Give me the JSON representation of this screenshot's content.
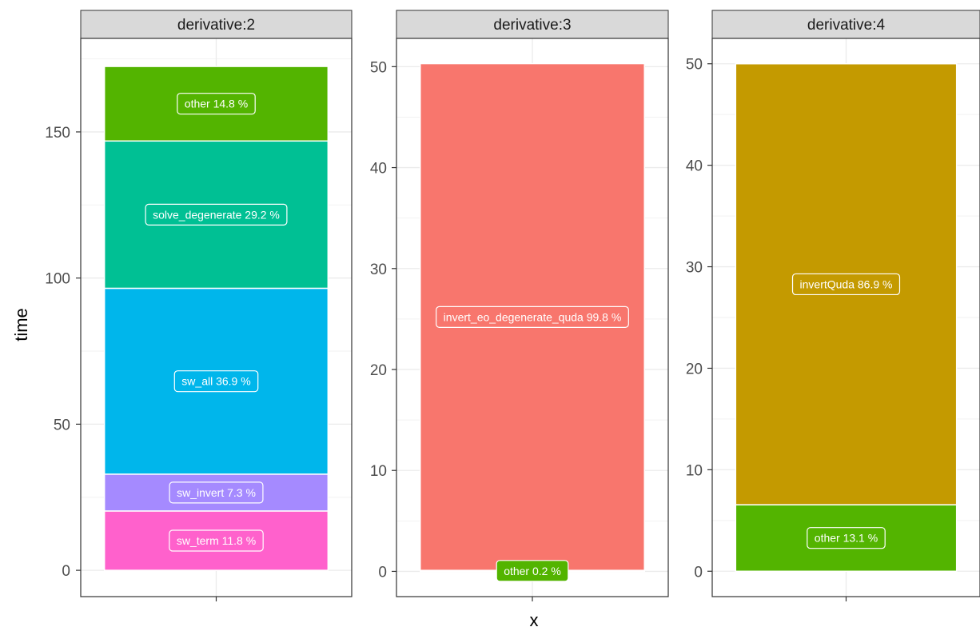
{
  "chart_data": {
    "type": "bar",
    "xlabel": "x",
    "ylabel": "time",
    "facets": [
      {
        "strip": "derivative:2",
        "ylim": [
          -9,
          182
        ],
        "yticks": [
          0,
          50,
          100,
          150
        ],
        "segments": [
          {
            "name": "sw_term",
            "value": 20.3,
            "label": "sw_term 11.8 %",
            "color": "#FF61CC"
          },
          {
            "name": "sw_invert",
            "value": 12.6,
            "label": "sw_invert 7.3 %",
            "color": "#A58AFF"
          },
          {
            "name": "sw_all",
            "value": 63.6,
            "label": "sw_all 36.9 %",
            "color": "#00B6EB"
          },
          {
            "name": "solve_degenerate",
            "value": 50.4,
            "label": "solve_degenerate 29.2 %",
            "color": "#00C094"
          },
          {
            "name": "other",
            "value": 25.5,
            "label": "other 14.8 %",
            "color": "#53B400"
          }
        ]
      },
      {
        "strip": "derivative:3",
        "ylim": [
          -2.5,
          52.8
        ],
        "yticks": [
          0,
          10,
          20,
          30,
          40,
          50
        ],
        "segments": [
          {
            "name": "other",
            "value": 0.1,
            "label": "other 0.2 %",
            "color": "#53B400"
          },
          {
            "name": "invert_eo_degenerate_quda",
            "value": 50.2,
            "label": "invert_eo_degenerate_quda 99.8 %",
            "color": "#F8766D"
          }
        ]
      },
      {
        "strip": "derivative:4",
        "ylim": [
          -2.5,
          52.5
        ],
        "yticks": [
          0,
          10,
          20,
          30,
          40,
          50
        ],
        "segments": [
          {
            "name": "other",
            "value": 6.55,
            "label": "other 13.1 %",
            "color": "#53B400"
          },
          {
            "name": "invertQuda",
            "value": 43.45,
            "label": "invertQuda 86.9 %",
            "color": "#C49A00"
          }
        ]
      }
    ]
  }
}
